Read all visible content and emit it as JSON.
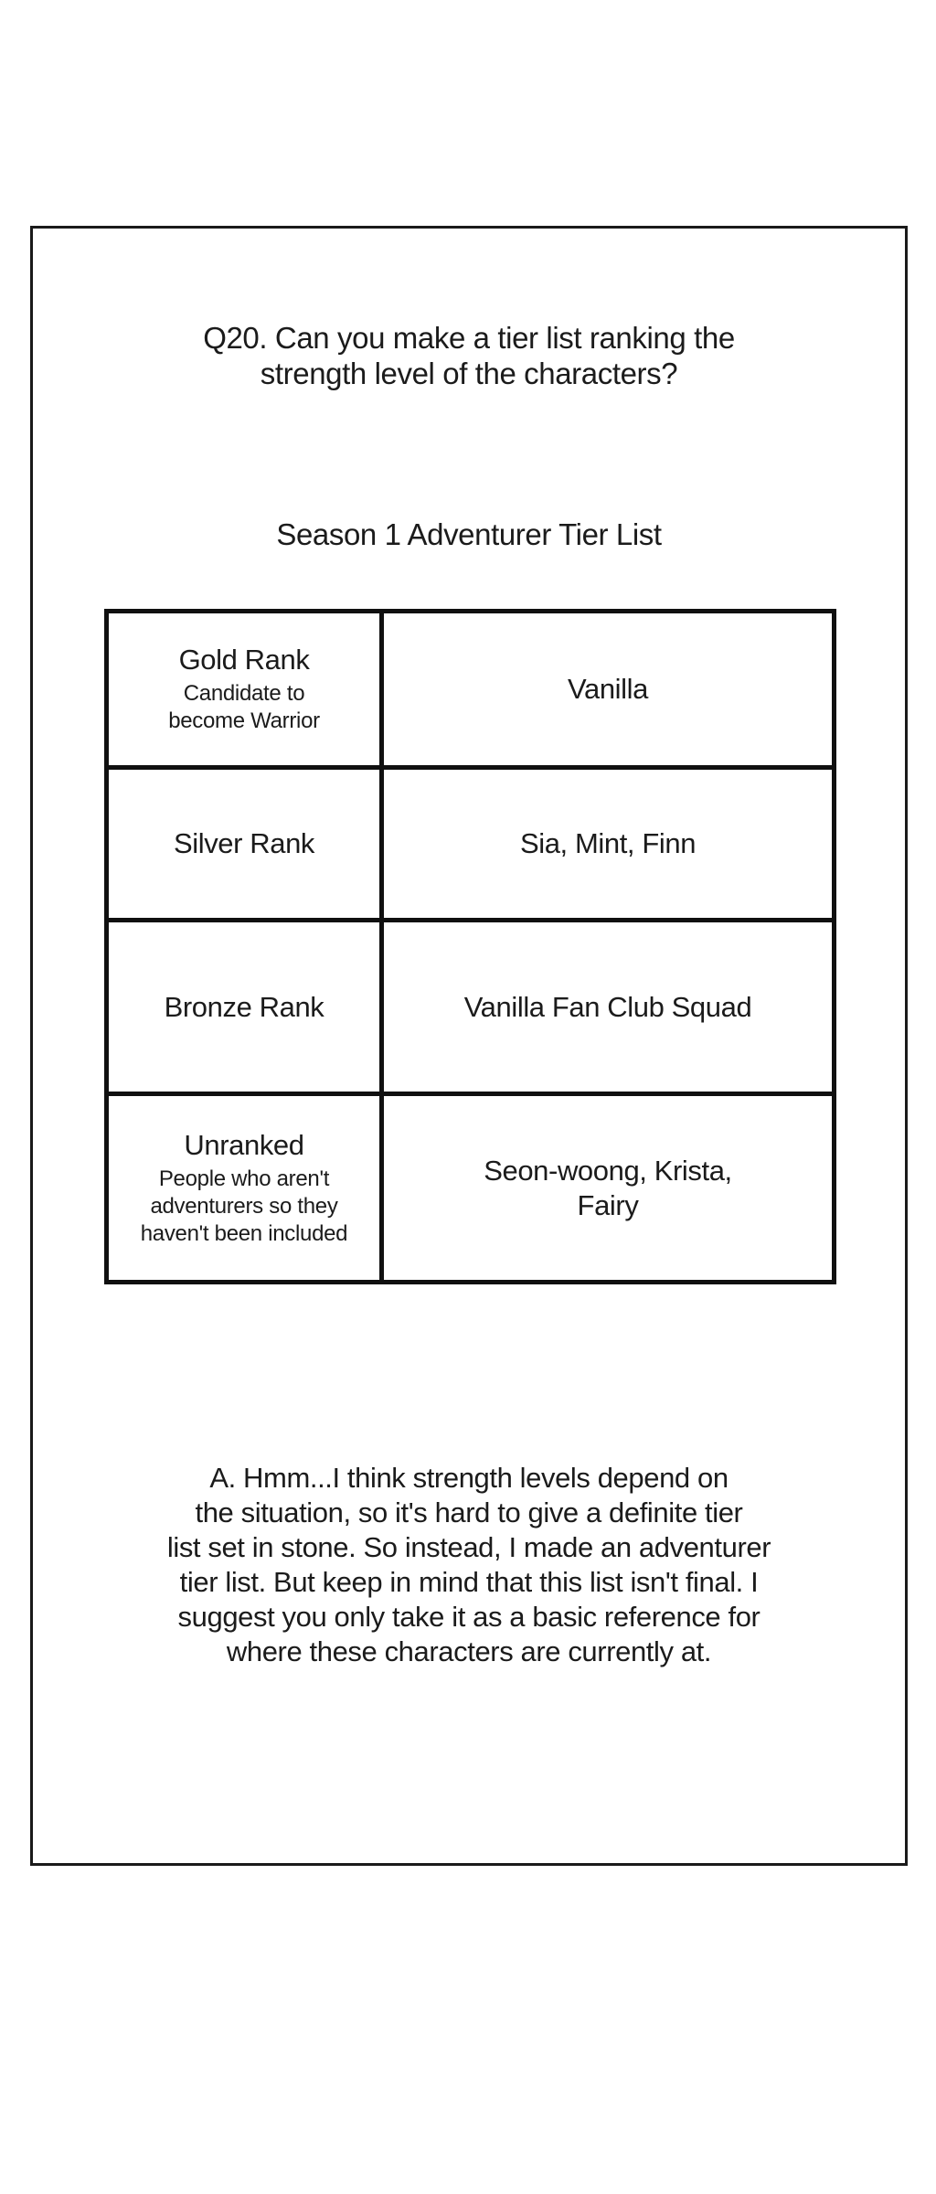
{
  "page": {
    "question": {
      "lines": [
        "Q20. Can you make a tier list ranking the",
        "strength level of the characters?"
      ]
    },
    "list_title": "Season 1 Adventurer Tier List",
    "tier_table": {
      "rows": [
        {
          "rank": "Gold Rank",
          "note_lines": [
            "Candidate to",
            "become Warrior"
          ],
          "members_lines": [
            "Vanilla"
          ]
        },
        {
          "rank": "Silver Rank",
          "note_lines": [],
          "members_lines": [
            "Sia, Mint, Finn"
          ]
        },
        {
          "rank": "Bronze Rank",
          "note_lines": [],
          "members_lines": [
            "Vanilla Fan Club Squad"
          ]
        },
        {
          "rank": "Unranked",
          "note_lines": [
            "People who aren't",
            "adventurers so they",
            "haven't been included"
          ],
          "members_lines": [
            "Seon-woong, Krista,",
            "Fairy"
          ]
        }
      ]
    },
    "answer": {
      "lines": [
        "A. Hmm...I think strength levels depend on",
        "the situation, so it's hard to give a definite tier",
        "list set in stone. So instead, I made an adventurer",
        "tier list. But keep in mind that this list isn't final. I",
        "suggest you only take it as a basic reference for",
        "where these characters are currently at."
      ]
    }
  },
  "colors": {
    "ink": "#1b1b1b",
    "table_border": "#101010",
    "sheet_border": "#1a1a1a",
    "background": "#ffffff"
  }
}
